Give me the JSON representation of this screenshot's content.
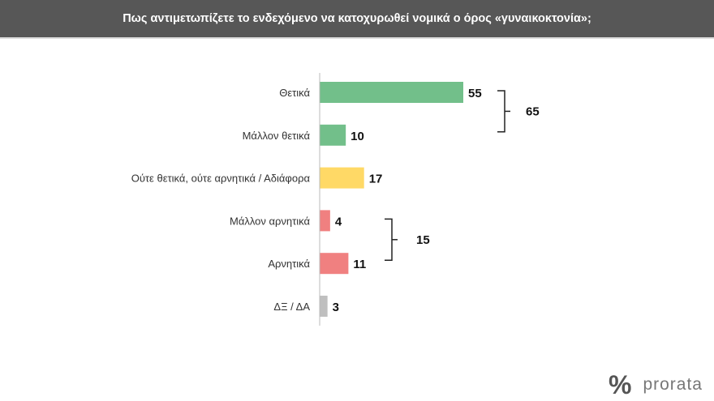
{
  "chart_data": {
    "type": "bar",
    "orientation": "horizontal",
    "title": "Πως αντιμετωπίζετε το ενδεχόμενο να κατοχυρωθεί νομικά ο όρος «γυναικοκτονία»;",
    "categories": [
      "Θετικά",
      "Μάλλον θετικά",
      "Ούτε θετικά, ούτε αρνητικά / Αδιάφορα",
      "Μάλλον αρνητικά",
      "Αρνητικά",
      "ΔΞ / ΔΑ"
    ],
    "values": [
      55,
      10,
      17,
      4,
      11,
      3
    ],
    "colors": [
      "#72bf8a",
      "#72bf8a",
      "#ffd966",
      "#f08080",
      "#f08080",
      "#bfbfbf"
    ],
    "groups": [
      {
        "members": [
          "Θετικά",
          "Μάλλον θετικά"
        ],
        "total": 65
      },
      {
        "members": [
          "Μάλλον αρνητικά",
          "Αρνητικά"
        ],
        "total": 15
      }
    ],
    "xlim": [
      0,
      55
    ]
  },
  "brand": {
    "mark": "%",
    "name": "prorata"
  }
}
